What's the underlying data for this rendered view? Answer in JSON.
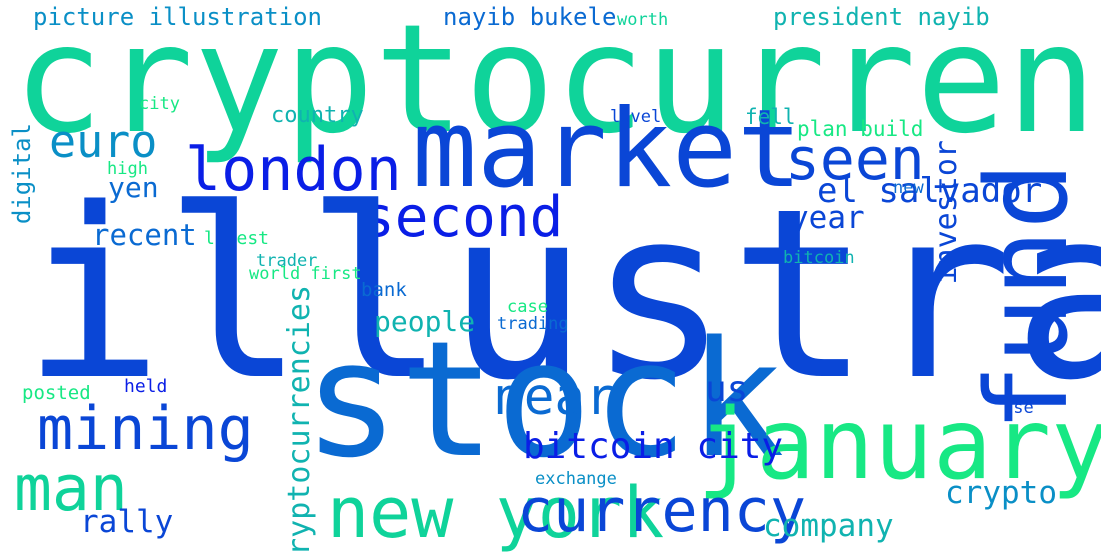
{
  "colors": {
    "background": "#ffffff",
    "palette": [
      "#0a1ee6",
      "#0a46d6",
      "#0a6ad2",
      "#0a8fc6",
      "#10b3b0",
      "#0fd39a",
      "#17e884",
      "#27f07a"
    ]
  },
  "words": [
    "picture illustration",
    "nayib bukele",
    "worth",
    "president nayib",
    "cryptocurrency",
    "market",
    "city",
    "country",
    "level",
    "fell",
    "plan build",
    "euro",
    "london",
    "seen",
    "high",
    "second",
    "el salvador",
    "new",
    "yen",
    "year",
    "recent",
    "latest",
    "illustration taken",
    "trader",
    "world first",
    "bitcoin",
    "bank",
    "case",
    "people",
    "trading",
    "stock",
    "posted",
    "held",
    "near",
    "us",
    "use",
    "mining",
    "january",
    "bitcoin city",
    "man",
    "exchange",
    "crypto",
    "new york",
    "currency",
    "rally",
    "company",
    "fund",
    "investor",
    "digital",
    "cryptocurrencies"
  ]
}
